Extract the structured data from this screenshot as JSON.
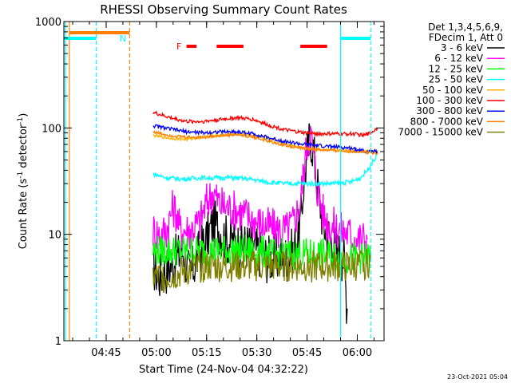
{
  "chart_data": {
    "type": "line",
    "title": "RHESSI Observing Summary Count Rates",
    "xlabel": "Start Time (24-Nov-04 04:32:22)",
    "ylabel": "Count Rate (s⁻¹ detector⁻¹)",
    "ylabel_parts": [
      "Count Rate (s",
      "-1",
      " detector",
      "-1",
      ")"
    ],
    "y_scale": "log",
    "ylim": [
      1,
      1000
    ],
    "y_ticks": [
      {
        "value": 1,
        "label": "1"
      },
      {
        "value": 10,
        "label": "10"
      },
      {
        "value": 100,
        "label": "100"
      },
      {
        "value": 1000,
        "label": "1000"
      }
    ],
    "xlim": [
      "04:32:22",
      "06:08:00"
    ],
    "x_ticks": [
      "04:45",
      "05:00",
      "05:15",
      "05:30",
      "05:45",
      "06:00"
    ],
    "legend_header": [
      "Det 1,3,4,5,6,9,",
      "FDecim 1, Att 0"
    ],
    "legend_placement": "right",
    "series": [
      {
        "name": "3 - 6 keV",
        "color": "#000000",
        "points": [
          [
            "04:59",
            5
          ],
          [
            "05:01",
            4
          ],
          [
            "05:04",
            5
          ],
          [
            "05:06",
            6
          ],
          [
            "05:08",
            7
          ],
          [
            "05:10",
            4
          ],
          [
            "05:13",
            7
          ],
          [
            "05:15",
            9
          ],
          [
            "05:17",
            13
          ],
          [
            "05:19",
            11
          ],
          [
            "05:21",
            9
          ],
          [
            "05:24",
            8
          ],
          [
            "05:27",
            8
          ],
          [
            "05:30",
            7
          ],
          [
            "05:33",
            6
          ],
          [
            "05:36",
            6
          ],
          [
            "05:39",
            6
          ],
          [
            "05:41",
            7
          ],
          [
            "05:43",
            12
          ],
          [
            "05:44",
            30
          ],
          [
            "05:45",
            55
          ],
          [
            "05:46",
            85
          ],
          [
            "05:47",
            60
          ],
          [
            "05:48",
            30
          ],
          [
            "05:50",
            12
          ],
          [
            "05:52",
            9
          ],
          [
            "05:54",
            7
          ],
          [
            "05:56",
            6
          ],
          [
            "05:57",
            2
          ]
        ]
      },
      {
        "name": "6 - 12 keV",
        "color": "#ff00ff",
        "points": [
          [
            "04:59",
            11
          ],
          [
            "05:01",
            10
          ],
          [
            "05:03",
            11
          ],
          [
            "05:05",
            18
          ],
          [
            "05:06",
            16
          ],
          [
            "05:07",
            11
          ],
          [
            "05:10",
            11
          ],
          [
            "05:13",
            13
          ],
          [
            "05:15",
            20
          ],
          [
            "05:17",
            25
          ],
          [
            "05:19",
            19
          ],
          [
            "05:21",
            18
          ],
          [
            "05:24",
            17
          ],
          [
            "05:27",
            15
          ],
          [
            "05:30",
            13
          ],
          [
            "05:33",
            12
          ],
          [
            "05:36",
            11
          ],
          [
            "05:39",
            11
          ],
          [
            "05:41",
            13
          ],
          [
            "05:43",
            20
          ],
          [
            "05:44",
            40
          ],
          [
            "05:45",
            70
          ],
          [
            "05:46",
            90
          ],
          [
            "05:47",
            55
          ],
          [
            "05:48",
            28
          ],
          [
            "05:50",
            15
          ],
          [
            "05:52",
            12
          ],
          [
            "05:55",
            11
          ],
          [
            "05:58",
            10
          ],
          [
            "06:00",
            9
          ],
          [
            "06:03",
            9
          ]
        ]
      },
      {
        "name": "12 - 25 keV",
        "color": "#00ff00",
        "points": [
          [
            "04:59",
            7
          ],
          [
            "05:05",
            7
          ],
          [
            "05:10",
            7
          ],
          [
            "05:15",
            7
          ],
          [
            "05:20",
            7
          ],
          [
            "05:25",
            7
          ],
          [
            "05:30",
            7
          ],
          [
            "05:35",
            6.5
          ],
          [
            "05:40",
            6.5
          ],
          [
            "05:45",
            6.5
          ],
          [
            "05:50",
            6.5
          ],
          [
            "05:55",
            6
          ],
          [
            "06:00",
            6
          ],
          [
            "06:04",
            6
          ]
        ]
      },
      {
        "name": "25 - 50 keV",
        "color": "#00ffff",
        "points": [
          [
            "04:59",
            37
          ],
          [
            "05:03",
            34
          ],
          [
            "05:08",
            33
          ],
          [
            "05:13",
            34
          ],
          [
            "05:18",
            34
          ],
          [
            "05:23",
            34
          ],
          [
            "05:28",
            33
          ],
          [
            "05:33",
            31
          ],
          [
            "05:38",
            30
          ],
          [
            "05:43",
            30
          ],
          [
            "05:48",
            30
          ],
          [
            "05:53",
            30
          ],
          [
            "05:58",
            31
          ],
          [
            "06:01",
            34
          ],
          [
            "06:03",
            40
          ],
          [
            "06:05",
            50
          ],
          [
            "06:06",
            57
          ]
        ]
      },
      {
        "name": "50 - 100 keV",
        "color": "#ffb000",
        "points": [
          [
            "04:59",
            85
          ],
          [
            "05:04",
            80
          ],
          [
            "05:09",
            78
          ],
          [
            "05:14",
            82
          ],
          [
            "05:19",
            85
          ],
          [
            "05:24",
            88
          ],
          [
            "05:29",
            86
          ],
          [
            "05:34",
            78
          ],
          [
            "05:39",
            70
          ],
          [
            "05:44",
            65
          ],
          [
            "05:49",
            63
          ],
          [
            "05:54",
            62
          ],
          [
            "05:59",
            60
          ],
          [
            "06:03",
            60
          ],
          [
            "06:06",
            60
          ]
        ]
      },
      {
        "name": "100 - 300 keV",
        "color": "#ff0000",
        "points": [
          [
            "04:59",
            140
          ],
          [
            "05:04",
            125
          ],
          [
            "05:09",
            115
          ],
          [
            "05:14",
            115
          ],
          [
            "05:19",
            120
          ],
          [
            "05:24",
            125
          ],
          [
            "05:29",
            120
          ],
          [
            "05:34",
            105
          ],
          [
            "05:39",
            95
          ],
          [
            "05:44",
            90
          ],
          [
            "05:49",
            88
          ],
          [
            "05:54",
            88
          ],
          [
            "05:59",
            88
          ],
          [
            "06:02",
            85
          ],
          [
            "06:04",
            90
          ],
          [
            "06:06",
            100
          ]
        ]
      },
      {
        "name": "300 - 800 keV",
        "color": "#0000ff",
        "points": [
          [
            "04:59",
            105
          ],
          [
            "05:04",
            98
          ],
          [
            "05:09",
            92
          ],
          [
            "05:14",
            90
          ],
          [
            "05:19",
            92
          ],
          [
            "05:24",
            92
          ],
          [
            "05:29",
            88
          ],
          [
            "05:34",
            80
          ],
          [
            "05:39",
            74
          ],
          [
            "05:44",
            70
          ],
          [
            "05:49",
            68
          ],
          [
            "05:54",
            66
          ],
          [
            "05:59",
            64
          ],
          [
            "06:03",
            60
          ],
          [
            "06:06",
            60
          ]
        ]
      },
      {
        "name": "800 - 7000 keV",
        "color": "#ff8000",
        "points": [
          [
            "04:59",
            92
          ],
          [
            "05:04",
            85
          ],
          [
            "05:09",
            82
          ],
          [
            "05:14",
            82
          ],
          [
            "05:19",
            85
          ],
          [
            "05:24",
            86
          ],
          [
            "05:29",
            82
          ],
          [
            "05:34",
            74
          ],
          [
            "05:39",
            68
          ],
          [
            "05:44",
            64
          ],
          [
            "05:49",
            62
          ],
          [
            "05:54",
            61
          ],
          [
            "05:59",
            60
          ],
          [
            "06:03",
            59
          ],
          [
            "06:06",
            58
          ]
        ]
      },
      {
        "name": "7000 - 15000 keV",
        "color": "#808000",
        "points": [
          [
            "04:59",
            4
          ],
          [
            "05:04",
            4
          ],
          [
            "05:09",
            4.5
          ],
          [
            "05:14",
            5
          ],
          [
            "05:19",
            5
          ],
          [
            "05:24",
            5
          ],
          [
            "05:29",
            5
          ],
          [
            "05:34",
            5
          ],
          [
            "05:39",
            5
          ],
          [
            "05:44",
            5
          ],
          [
            "05:49",
            5
          ],
          [
            "05:54",
            5
          ],
          [
            "05:59",
            5
          ],
          [
            "06:04",
            5.5
          ]
        ]
      }
    ],
    "annotations": [
      {
        "text": "F",
        "color": "#ff0000",
        "y": 740
      },
      {
        "text": "N",
        "color": "#00ffff",
        "y": 790
      }
    ],
    "flare_bars": [
      [
        "05:09",
        "05:12"
      ],
      [
        "05:18",
        "05:26"
      ],
      [
        "05:43",
        "05:51"
      ]
    ],
    "night_bars": [
      [
        "04:32:22",
        "04:42"
      ],
      [
        "05:55",
        "06:04"
      ]
    ],
    "saa_bar": [
      "04:34",
      "04:52"
    ],
    "vertical_lines": [
      {
        "time": "04:32:50",
        "color": "#00ffff",
        "style": "solid"
      },
      {
        "time": "04:34",
        "color": "#ff8000",
        "style": "solid"
      },
      {
        "time": "04:42",
        "color": "#00ffff",
        "style": "dashed"
      },
      {
        "time": "04:52",
        "color": "#ff8000",
        "style": "dashed"
      },
      {
        "time": "05:55",
        "color": "#00ffff",
        "style": "solid"
      },
      {
        "time": "06:04",
        "color": "#00ffff",
        "style": "dashed"
      }
    ],
    "footer_date": "23-Oct-2021 05:04"
  }
}
